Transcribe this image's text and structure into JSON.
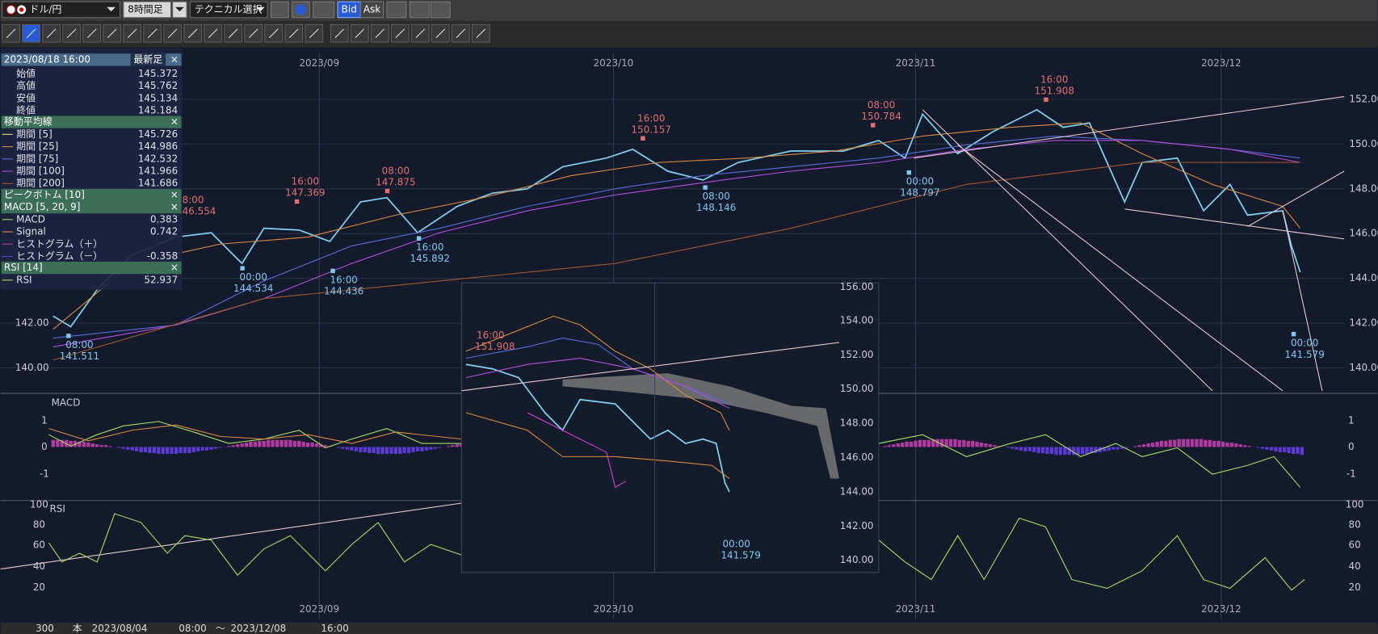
{
  "toolbar": {
    "symbol": "ドル/円",
    "timeframe": "8時間足",
    "technical": "テクニカル選択",
    "bid": "Bid",
    "ask": "Ask"
  },
  "info_panel": {
    "datetime": "2023/08/18 16:00",
    "latest": "最新足",
    "ohlc": [
      {
        "label": "始値",
        "value": "145.372"
      },
      {
        "label": "高値",
        "value": "145.762"
      },
      {
        "label": "安値",
        "value": "145.134"
      },
      {
        "label": "終値",
        "value": "145.184"
      }
    ],
    "ma_title": "移動平均線",
    "ma": [
      {
        "label": "期間 [5]",
        "value": "145.726"
      },
      {
        "label": "期間 [25]",
        "value": "144.986"
      },
      {
        "label": "期間 [75]",
        "value": "142.532"
      },
      {
        "label": "期間 [100]",
        "value": "141.966"
      },
      {
        "label": "期間 [200]",
        "value": "141.686"
      }
    ],
    "peak_title": "ピークボトム [10]",
    "macd_title": "MACD [5, 20, 9]",
    "macd": [
      {
        "label": "MACD",
        "value": "0.383"
      },
      {
        "label": "Signal",
        "value": "0.742"
      },
      {
        "label": "ヒストグラム（＋）"
      },
      {
        "label": "ヒストグラム（－）",
        "value": "-0.358"
      }
    ],
    "rsi_title": "RSI [14]",
    "rsi": [
      {
        "label": "RSI",
        "value": "52.937"
      }
    ]
  },
  "main_chart": {
    "dates": [
      "2023/09",
      "2023/10",
      "2023/11",
      "2023/12"
    ],
    "price_axis": [
      "152.00",
      "150.00",
      "148.00",
      "146.00",
      "144.00",
      "142.00",
      "140.00"
    ],
    "left_axis": [
      "142.00",
      "140.00"
    ],
    "peaks": [
      {
        "time": "8:00",
        "price": "46.554"
      },
      {
        "time": "16:00",
        "price": "147.369"
      },
      {
        "time": "08:00",
        "price": "147.875"
      },
      {
        "time": "16:00",
        "price": "150.157"
      },
      {
        "time": "08:00",
        "price": "150.784"
      },
      {
        "time": "16:00",
        "price": "151.908"
      }
    ],
    "bottoms": [
      {
        "time": "08:00",
        "price": "141.511"
      },
      {
        "time": "00:00",
        "price": "144.534"
      },
      {
        "time": "16:00",
        "price": "144.436"
      },
      {
        "time": "16:00",
        "price": "145.892"
      },
      {
        "time": "08:00",
        "price": "148.146"
      },
      {
        "time": "00:00",
        "price": "148.797"
      },
      {
        "time": "00:00",
        "price": "141.579"
      }
    ],
    "macd_label": "MACD",
    "macd_axis": [
      "1",
      "0",
      "-1"
    ],
    "rsi_label": "RSI",
    "rsi_axis": [
      "100",
      "80",
      "60",
      "40",
      "20"
    ]
  },
  "overlay": {
    "price_axis": [
      "156.00",
      "154.00",
      "152.00",
      "150.00",
      "148.00",
      "146.00",
      "144.00",
      "142.00",
      "140.00"
    ],
    "peak": {
      "time": "16:00",
      "price": "151.908"
    },
    "bottom": {
      "time": "00:00",
      "price": "141.579"
    }
  },
  "footer": {
    "count": "300",
    "unit": "本",
    "from_date": "2023/08/04",
    "from_time": "08:00",
    "separator": "～",
    "to_date": "2023/12/08",
    "to_time": "16:00"
  }
}
